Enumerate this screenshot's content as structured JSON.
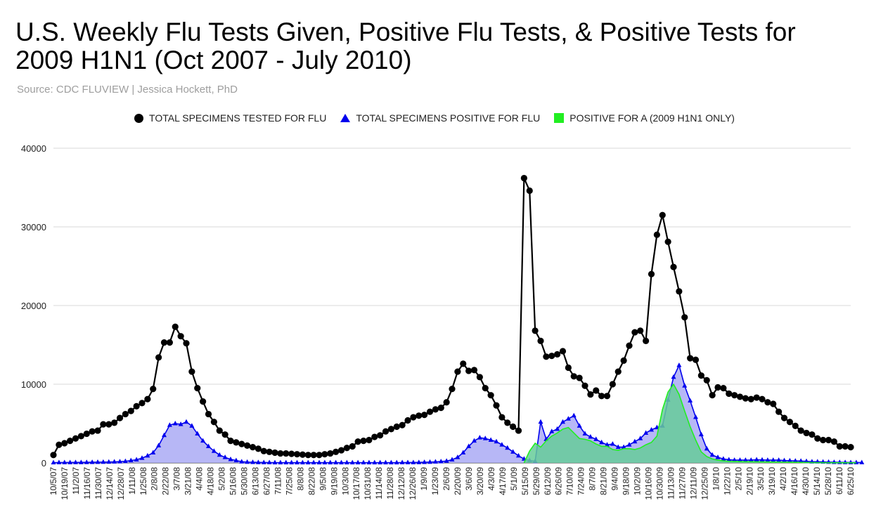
{
  "title": "U.S. Weekly Flu Tests Given,  Positive Flu Tests, & Positive Tests for 2009 H1N1 (Oct 2007 - July 2010)",
  "subtitle": "Source: CDC FLUVIEW | Jessica Hockett, PhD",
  "colors": {
    "tested": "#000000",
    "positive": "#0000ee",
    "positive_fill": "#aaaaf5",
    "h1n1": "#22ee22",
    "h1n1_fill": "#66cc99",
    "grid": "#d9d9d9"
  },
  "chart_data": {
    "type": "line",
    "title": "U.S. Weekly Flu Tests Given,  Positive Flu Tests, & Positive Tests for 2009 H1N1 (Oct 2007 - July 2010)",
    "xlabel": "",
    "ylabel": "",
    "ylim": [
      0,
      40000
    ],
    "y_ticks": [
      0,
      10000,
      20000,
      30000,
      40000
    ],
    "grid": true,
    "legend_position": "top",
    "x_tick_labels": [
      "10/5/07",
      "10/19/07",
      "11/2/07",
      "11/16/07",
      "11/30/07",
      "12/14/07",
      "12/28/07",
      "1/11/08",
      "1/25/08",
      "2/8/08",
      "2/22/08",
      "3/7/08",
      "3/21/08",
      "4/4/08",
      "4/18/08",
      "5/2/08",
      "5/16/08",
      "5/30/08",
      "6/13/08",
      "6/27/08",
      "7/11/08",
      "7/25/08",
      "8/8/08",
      "8/22/08",
      "9/5/08",
      "9/19/08",
      "10/3/08",
      "10/17/08",
      "10/31/08",
      "11/14/08",
      "11/28/08",
      "12/12/08",
      "12/26/08",
      "1/9/09",
      "1/23/09",
      "2/6/09",
      "2/20/09",
      "3/6/09",
      "3/20/09",
      "4/3/09",
      "4/17/09",
      "5/1/09",
      "5/15/09",
      "5/29/09",
      "6/12/09",
      "6/26/09",
      "7/10/09",
      "7/24/09",
      "8/7/09",
      "8/21/09",
      "9/4/09",
      "9/18/09",
      "10/2/09",
      "10/16/09",
      "10/30/09",
      "11/13/09",
      "11/27/09",
      "12/11/09",
      "12/25/09",
      "1/8/10",
      "1/22/10",
      "2/5/10",
      "2/19/10",
      "3/5/10",
      "3/19/10",
      "4/2/10",
      "4/16/10",
      "4/30/10",
      "5/14/10",
      "5/28/10",
      "6/11/10",
      "6/25/10"
    ],
    "series": [
      {
        "name": "TOTAL SPECIMENS TESTED FOR FLU",
        "marker": "circle",
        "values": [
          1000,
          2300,
          2500,
          2800,
          3100,
          3400,
          3700,
          4000,
          4100,
          4900,
          4900,
          5100,
          5700,
          6200,
          6600,
          7200,
          7600,
          8100,
          9400,
          13400,
          15300,
          15300,
          17300,
          16100,
          15200,
          11600,
          9500,
          7800,
          6200,
          5200,
          4100,
          3600,
          2800,
          2600,
          2400,
          2200,
          2000,
          1800,
          1500,
          1400,
          1300,
          1200,
          1200,
          1150,
          1100,
          1050,
          1000,
          1000,
          1000,
          1100,
          1200,
          1400,
          1600,
          1900,
          2100,
          2700,
          2800,
          2900,
          3300,
          3500,
          4000,
          4300,
          4600,
          4800,
          5400,
          5800,
          6000,
          6100,
          6500,
          6800,
          7000,
          7700,
          9400,
          11600,
          12600,
          11700,
          11800,
          10900,
          9500,
          8600,
          7300,
          5800,
          5100,
          4600,
          4100,
          36200,
          34600,
          16800,
          15500,
          13500,
          13600,
          13800,
          14200,
          12100,
          11000,
          10800,
          9800,
          8700,
          9200,
          8500,
          8500,
          10000,
          11600,
          13000,
          14900,
          16600,
          16800,
          15500,
          24000,
          29000,
          31500,
          28100,
          24900,
          21800,
          18500,
          13300,
          13100,
          11100,
          10500,
          8600,
          9600,
          9500,
          8800,
          8600,
          8400,
          8200,
          8100,
          8300,
          8100,
          7700,
          7500,
          6500,
          5700,
          5200,
          4700,
          4100,
          3800,
          3600,
          3100,
          2900,
          2900,
          2700,
          2100,
          2100,
          2000
        ]
      },
      {
        "name": "TOTAL SPECIMENS POSITIVE FOR FLU",
        "marker": "triangle",
        "values": [
          30,
          40,
          50,
          50,
          60,
          60,
          70,
          80,
          90,
          100,
          110,
          130,
          160,
          200,
          300,
          400,
          600,
          900,
          1300,
          2200,
          3500,
          4800,
          5000,
          4900,
          5200,
          4700,
          3700,
          2800,
          2100,
          1500,
          1000,
          700,
          450,
          300,
          150,
          100,
          80,
          60,
          50,
          40,
          30,
          30,
          30,
          30,
          30,
          30,
          30,
          30,
          30,
          30,
          30,
          30,
          30,
          30,
          30,
          30,
          30,
          30,
          30,
          30,
          30,
          30,
          30,
          40,
          40,
          50,
          60,
          80,
          100,
          130,
          170,
          230,
          400,
          700,
          1300,
          2100,
          2800,
          3200,
          3100,
          2900,
          2700,
          2300,
          1900,
          1400,
          900,
          500,
          300,
          200,
          5200,
          3000,
          4000,
          4300,
          5200,
          5600,
          6000,
          4700,
          3700,
          3300,
          3000,
          2600,
          2300,
          2400,
          2000,
          2000,
          2300,
          2700,
          3100,
          3800,
          4200,
          4500,
          4700,
          8000,
          10900,
          12400,
          9800,
          7900,
          5800,
          3600,
          1800,
          1000,
          700,
          500,
          400,
          350,
          350,
          350,
          350,
          400,
          380,
          350,
          350,
          350,
          300,
          280,
          250,
          230,
          200,
          150,
          150,
          120,
          100,
          80,
          70,
          60,
          50,
          50,
          40
        ]
      },
      {
        "name": "POSITIVE FOR A (2009 H1N1 ONLY)",
        "marker": "square",
        "values": [
          null,
          null,
          null,
          null,
          null,
          null,
          null,
          null,
          null,
          null,
          null,
          null,
          null,
          null,
          null,
          null,
          null,
          null,
          null,
          null,
          null,
          null,
          null,
          null,
          null,
          null,
          null,
          null,
          null,
          null,
          null,
          null,
          null,
          null,
          null,
          null,
          null,
          null,
          null,
          null,
          null,
          null,
          null,
          null,
          null,
          null,
          null,
          null,
          null,
          null,
          null,
          null,
          null,
          null,
          null,
          null,
          null,
          null,
          null,
          null,
          null,
          null,
          null,
          null,
          null,
          null,
          null,
          null,
          null,
          null,
          null,
          null,
          null,
          null,
          null,
          null,
          null,
          null,
          null,
          null,
          null,
          null,
          null,
          null,
          null,
          0,
          1500,
          2500,
          2000,
          2800,
          3400,
          3800,
          4300,
          4500,
          3800,
          3100,
          3000,
          2800,
          2400,
          2100,
          2100,
          1700,
          1600,
          1800,
          1800,
          1700,
          1900,
          2300,
          2600,
          3400,
          6800,
          9000,
          10000,
          8700,
          6600,
          4600,
          2900,
          1400,
          800,
          500,
          350,
          250,
          200,
          180,
          160,
          150,
          150,
          140,
          130,
          120,
          110,
          100,
          90,
          80,
          70,
          60,
          50,
          40,
          30,
          30,
          20,
          20,
          20,
          10,
          10,
          10
        ]
      }
    ]
  }
}
